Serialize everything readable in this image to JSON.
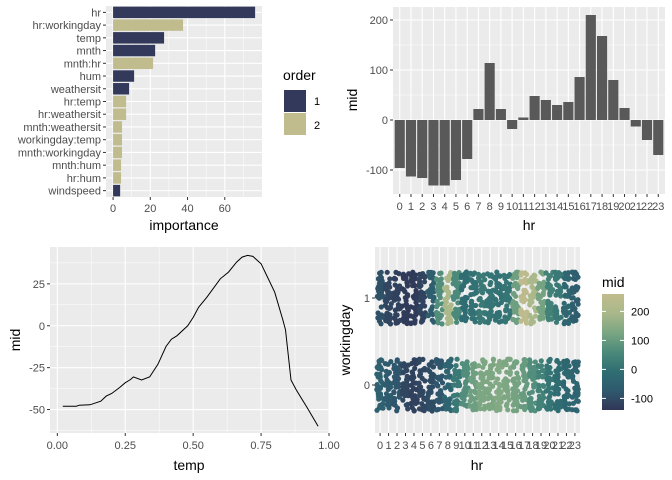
{
  "chart_data": [
    {
      "type": "bar",
      "orientation": "horizontal",
      "categories": [
        "hr",
        "hr:workingday",
        "temp",
        "mnth",
        "mnth:hr",
        "hum",
        "weathersit",
        "hr:temp",
        "hr:weathersit",
        "mnth:weathersit",
        "workingday:temp",
        "mnth:workingday",
        "mnth:hum",
        "hr:hum",
        "windspeed"
      ],
      "values": [
        76.3,
        37.6,
        27.4,
        22.6,
        21.5,
        11.3,
        8.6,
        7.0,
        7.0,
        4.8,
        4.8,
        4.8,
        4.3,
        4.3,
        3.8
      ],
      "order": [
        1,
        2,
        1,
        1,
        2,
        1,
        1,
        2,
        2,
        2,
        2,
        2,
        2,
        2,
        1
      ],
      "xlabel": "importance",
      "ylabel": "",
      "xlim": [
        -3.8,
        80
      ],
      "xticks": [
        0,
        20,
        40,
        60
      ],
      "grid": true,
      "legend": {
        "title": "order",
        "placement": "right",
        "entries": [
          {
            "label": "1",
            "color": "#33395a"
          },
          {
            "label": "2",
            "color": "#c1bc8e"
          }
        ]
      }
    },
    {
      "type": "bar",
      "categories": [
        "0",
        "1",
        "2",
        "3",
        "4",
        "5",
        "6",
        "7",
        "8",
        "9",
        "10",
        "11",
        "12",
        "13",
        "14",
        "15",
        "16",
        "17",
        "18",
        "19",
        "20",
        "21",
        "22",
        "23"
      ],
      "values": [
        -96,
        -113,
        -116,
        -131,
        -131,
        -120,
        -78,
        22,
        114,
        22,
        -18,
        5,
        48,
        40,
        30,
        36,
        86,
        210,
        168,
        80,
        24,
        -13,
        -40,
        -70
      ],
      "xlabel": "hr",
      "ylabel": "mid",
      "ylim": [
        -148,
        226
      ],
      "yticks": [
        -100,
        0,
        100,
        200
      ],
      "bar_color": "#595959",
      "grid": true
    },
    {
      "type": "line",
      "x": [
        0.02,
        0.07,
        0.08,
        0.12,
        0.16,
        0.18,
        0.2,
        0.23,
        0.25,
        0.27,
        0.28,
        0.31,
        0.34,
        0.37,
        0.4,
        0.42,
        0.44,
        0.48,
        0.5,
        0.52,
        0.55,
        0.6,
        0.63,
        0.66,
        0.68,
        0.7,
        0.72,
        0.75,
        0.8,
        0.83,
        0.84,
        0.86,
        0.88,
        0.92,
        0.96
      ],
      "y": [
        -48,
        -48,
        -47.4,
        -47.2,
        -45,
        -42,
        -40.4,
        -36.8,
        -34,
        -32,
        -30.5,
        -32.4,
        -30.5,
        -23,
        -12.4,
        -8,
        -6,
        0,
        5,
        11,
        17,
        28,
        32,
        38,
        41,
        42,
        41.4,
        37,
        20,
        3.6,
        -2.4,
        -32.4,
        -38.4,
        -49,
        -60
      ],
      "xlabel": "temp",
      "ylabel": "mid",
      "xlim": [
        -0.027,
        1.0
      ],
      "ylim": [
        -64,
        47
      ],
      "xticks": [
        "0.00",
        "0.25",
        "0.50",
        "0.75",
        "1.00"
      ],
      "yticks": [
        "-50",
        "-25",
        "0",
        "25"
      ],
      "line_color": "#000000",
      "grid": true
    },
    {
      "type": "scatter",
      "subtype": "jitter",
      "xlabel": "hr",
      "ylabel": "workingday",
      "x_categories": [
        "0",
        "1",
        "2",
        "3",
        "4",
        "5",
        "6",
        "7",
        "8",
        "9",
        "10",
        "11",
        "12",
        "13",
        "14",
        "15",
        "16",
        "17",
        "18",
        "19",
        "20",
        "21",
        "22",
        "23"
      ],
      "y_categories": [
        "0",
        "1"
      ],
      "series": [
        {
          "name": "workingday=1",
          "y": "1",
          "mid": [
            -90,
            -110,
            -120,
            -130,
            -130,
            -115,
            -60,
            70,
            200,
            60,
            -10,
            0,
            20,
            10,
            0,
            10,
            110,
            250,
            200,
            120,
            40,
            20,
            -30,
            -60
          ]
        },
        {
          "name": "workingday=0",
          "y": "0",
          "mid": [
            -50,
            -70,
            -80,
            -110,
            -120,
            -110,
            -100,
            -80,
            -40,
            20,
            70,
            110,
            130,
            130,
            140,
            130,
            120,
            100,
            70,
            40,
            10,
            -10,
            -30,
            -40
          ]
        }
      ],
      "color_scale": {
        "title": "mid",
        "range": [
          -140,
          260
        ],
        "ticks": [
          "-100",
          "0",
          "100",
          "200"
        ],
        "stops": [
          "#303657",
          "#2f5a6e",
          "#2f6e73",
          "#4b8a7a",
          "#7aa682",
          "#a9b88a",
          "#c1bc8e"
        ]
      },
      "grid": true
    }
  ]
}
